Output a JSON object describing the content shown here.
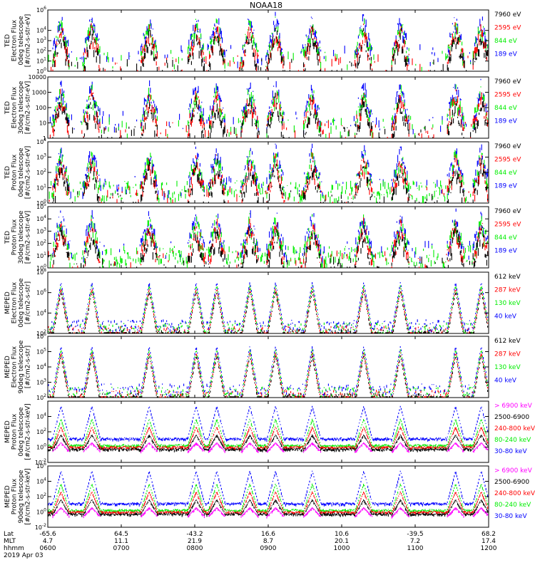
{
  "title": "NOAA18",
  "colors": {
    "black": "#000000",
    "red": "#ff0000",
    "green": "#00ee00",
    "blue": "#0000ff",
    "magenta": "#ff00ff"
  },
  "chart_data": [
    {
      "type": "scatter",
      "ylabel": [
        "TED",
        "Electron Flux",
        "0deg telescope",
        "[#/cm2-s-str-eV]"
      ],
      "yscale": "log",
      "ylim": [
        1,
        1000000
      ],
      "yticks": [
        {
          "v": 1000000,
          "base": "10",
          "exp": "6"
        },
        {
          "v": 10000,
          "base": "10",
          "exp": "4"
        },
        {
          "v": 1000,
          "base": "10",
          "exp": "3"
        },
        {
          "v": 100,
          "base": "10",
          "exp": "2"
        },
        {
          "v": 10,
          "base": "10",
          "exp": "1"
        },
        {
          "v": 1,
          "base": "10",
          "exp": "0"
        }
      ],
      "legend": [
        {
          "label": "7960 eV",
          "color": "black"
        },
        {
          "label": "2595 eV",
          "color": "red"
        },
        {
          "label": "844 eV",
          "color": "green"
        },
        {
          "label": "189 eV",
          "color": "blue"
        }
      ]
    },
    {
      "type": "scatter",
      "ylabel": [
        "TED",
        "Electron Flux",
        "30deg telescope",
        "[#/cm2-s-str-eV]"
      ],
      "yscale": "log",
      "ylim": [
        1,
        10000
      ],
      "yticks": [
        {
          "v": 10000,
          "base": "10000",
          "exp": ""
        },
        {
          "v": 1000,
          "base": "1000",
          "exp": ""
        },
        {
          "v": 100,
          "base": "100",
          "exp": ""
        },
        {
          "v": 10,
          "base": "10",
          "exp": ""
        },
        {
          "v": 1,
          "base": "1",
          "exp": ""
        }
      ],
      "legend": [
        {
          "label": "7960 eV",
          "color": "black"
        },
        {
          "label": "2595 eV",
          "color": "red"
        },
        {
          "label": "844 eV",
          "color": "green"
        },
        {
          "label": "189 eV",
          "color": "blue"
        }
      ]
    },
    {
      "type": "scatter",
      "ylabel": [
        "TED",
        "Proton Flux",
        "0deg telescope",
        "[#/cm2-s-str-eV]"
      ],
      "yscale": "log",
      "ylim": [
        1,
        10000
      ],
      "yticks": [
        {
          "v": 10000,
          "base": "10",
          "exp": "4"
        },
        {
          "v": 1000,
          "base": "10",
          "exp": "3"
        },
        {
          "v": 100,
          "base": "10",
          "exp": "2"
        },
        {
          "v": 10,
          "base": "10",
          "exp": "1"
        },
        {
          "v": 1,
          "base": "10",
          "exp": "0"
        }
      ],
      "legend": [
        {
          "label": "7960 eV",
          "color": "black"
        },
        {
          "label": "2595 eV",
          "color": "red"
        },
        {
          "label": "844 eV",
          "color": "green"
        },
        {
          "label": "189 eV",
          "color": "blue"
        }
      ]
    },
    {
      "type": "scatter",
      "ylabel": [
        "TED",
        "Proton Flux",
        "30deg telescope",
        "[#/cm2-s-str-eV]"
      ],
      "yscale": "log",
      "ylim": [
        1,
        100000
      ],
      "yticks": [
        {
          "v": 100000,
          "base": "10",
          "exp": "5"
        },
        {
          "v": 10000,
          "base": "10",
          "exp": "4"
        },
        {
          "v": 1000,
          "base": "10",
          "exp": "3"
        },
        {
          "v": 100,
          "base": "10",
          "exp": "2"
        },
        {
          "v": 10,
          "base": "10",
          "exp": "1"
        },
        {
          "v": 1,
          "base": "10",
          "exp": "0"
        }
      ],
      "legend": [
        {
          "label": "7960 eV",
          "color": "black"
        },
        {
          "label": "2595 eV",
          "color": "red"
        },
        {
          "label": "844 eV",
          "color": "green"
        },
        {
          "label": "189 eV",
          "color": "blue"
        }
      ]
    },
    {
      "type": "scatter",
      "ylabel": [
        "MEPED",
        "Electron Flux",
        "0deg telescope",
        "[#/cm2-s-str]"
      ],
      "yscale": "log",
      "ylim": [
        100,
        100000000
      ],
      "yticks": [
        {
          "v": 100000000,
          "base": "10",
          "exp": "8"
        },
        {
          "v": 1000000,
          "base": "10",
          "exp": "6"
        },
        {
          "v": 10000,
          "base": "10",
          "exp": "4"
        },
        {
          "v": 100,
          "base": "10",
          "exp": "2"
        }
      ],
      "legend": [
        {
          "label": "612 keV",
          "color": "black"
        },
        {
          "label": "287 keV",
          "color": "red"
        },
        {
          "label": "130 keV",
          "color": "green"
        },
        {
          "label": "40 keV",
          "color": "blue"
        }
      ]
    },
    {
      "type": "scatter",
      "ylabel": [
        "MEPED",
        "Electron Flux",
        "90deg telescope",
        "[#/cm2-s-str]"
      ],
      "yscale": "log",
      "ylim": [
        100,
        1000000
      ],
      "yticks": [
        {
          "v": 1000000,
          "base": "10",
          "exp": "6"
        },
        {
          "v": 100000,
          "base": "10",
          "exp": "5"
        },
        {
          "v": 10000,
          "base": "10",
          "exp": "4"
        },
        {
          "v": 1000,
          "base": "10",
          "exp": "3"
        },
        {
          "v": 100,
          "base": "10",
          "exp": "2"
        }
      ],
      "legend": [
        {
          "label": "612 keV",
          "color": "black"
        },
        {
          "label": "287 keV",
          "color": "red"
        },
        {
          "label": "130 keV",
          "color": "green"
        },
        {
          "label": "40 keV",
          "color": "blue"
        }
      ]
    },
    {
      "type": "scatter",
      "ylabel": [
        "MEPED",
        "Proton Flux",
        "0deg telescope",
        "[#/cm2-s-str-keV]"
      ],
      "yscale": "log",
      "ylim": [
        0.01,
        1000000
      ],
      "yticks": [
        {
          "v": 10000,
          "base": "10",
          "exp": "4"
        },
        {
          "v": 100,
          "base": "10",
          "exp": "2"
        },
        {
          "v": 1,
          "base": "10",
          "exp": "0"
        },
        {
          "v": 0.01,
          "base": "10",
          "exp": "-2"
        }
      ],
      "legend": [
        {
          "label": "> 6900 keV",
          "color": "magenta"
        },
        {
          "label": "2500-6900",
          "color": "black"
        },
        {
          "label": "240-800 keV",
          "color": "red"
        },
        {
          "label": "80-240 keV",
          "color": "green"
        },
        {
          "label": "30-80 keV",
          "color": "blue"
        }
      ]
    },
    {
      "type": "scatter",
      "ylabel": [
        "MEPED",
        "Proton Flux",
        "90deg telescope",
        "[#/cm2-s-str-keV]"
      ],
      "yscale": "log",
      "ylim": [
        0.01,
        1000000
      ],
      "yticks": [
        {
          "v": 1000000,
          "base": "10",
          "exp": "6"
        },
        {
          "v": 10000,
          "base": "10",
          "exp": "4"
        },
        {
          "v": 100,
          "base": "10",
          "exp": "2"
        },
        {
          "v": 1,
          "base": "10",
          "exp": "0"
        },
        {
          "v": 0.01,
          "base": "10",
          "exp": "-2"
        }
      ],
      "legend": [
        {
          "label": "> 6900 keV",
          "color": "magenta"
        },
        {
          "label": "2500-6900",
          "color": "black"
        },
        {
          "label": "240-800 keV",
          "color": "red"
        },
        {
          "label": "80-240 keV",
          "color": "green"
        },
        {
          "label": "30-80 keV",
          "color": "blue"
        }
      ]
    }
  ],
  "x_axis": {
    "row_labels": [
      "Lat",
      "MLT",
      "hhmm"
    ],
    "date": "2019 Apr 03",
    "ticks": [
      {
        "time": "0600",
        "lat": "-65.6",
        "mlt": "4.7",
        "hhmm": "0600"
      },
      {
        "time": "0700",
        "lat": "64.5",
        "mlt": "11.1",
        "hhmm": "0700"
      },
      {
        "time": "0800",
        "lat": "-43.2",
        "mlt": "21.9",
        "hhmm": "0800"
      },
      {
        "time": "0900",
        "lat": "16.6",
        "mlt": "8.7",
        "hhmm": "0900"
      },
      {
        "time": "1000",
        "lat": "10.6",
        "mlt": "20.1",
        "hhmm": "1000"
      },
      {
        "time": "1100",
        "lat": "-39.5",
        "mlt": "7.2",
        "hhmm": "1100"
      },
      {
        "time": "1200",
        "lat": "68.2",
        "mlt": "17.4",
        "hhmm": "1200"
      }
    ]
  }
}
